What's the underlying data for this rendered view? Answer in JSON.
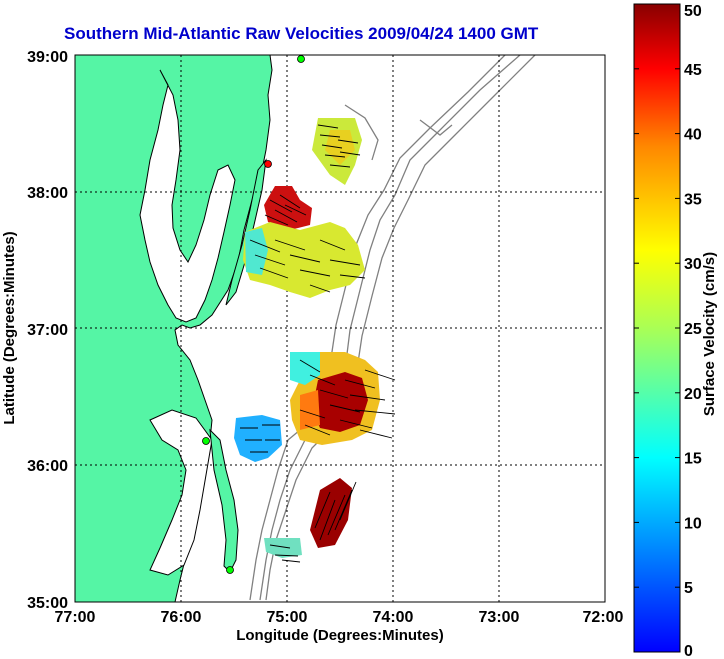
{
  "title": "Southern Mid-Atlantic Raw Velocities 2009/04/24 1400 GMT",
  "xlabel": "Longitude (Degrees:Minutes)",
  "ylabel": "Latitude (Degrees:Minutes)",
  "colorbar": {
    "label": "Surface Velocity (cm/s)",
    "min": 0,
    "max": 50,
    "ticks": [
      0,
      5,
      10,
      15,
      20,
      25,
      30,
      35,
      40,
      45,
      50
    ],
    "tick_labels": [
      "0",
      "5",
      "10",
      "15",
      "20",
      "25",
      "30",
      "35",
      "40",
      "45",
      "50"
    ]
  },
  "chart_data": {
    "type": "heatmap",
    "title": "Southern Mid-Atlantic Raw Velocities 2009/04/24 1400 GMT",
    "xlabel": "Longitude (Degrees:Minutes)",
    "ylabel": "Latitude (Degrees:Minutes)",
    "xlim": [
      -77,
      -72
    ],
    "ylim": [
      35,
      39
    ],
    "x_ticks": [
      -77,
      -76,
      -75,
      -74,
      -73,
      -72
    ],
    "x_tick_labels": [
      "77:00",
      "76:00",
      "75:00",
      "74:00",
      "73:00",
      "72:00"
    ],
    "y_ticks": [
      35,
      36,
      37,
      38,
      39
    ],
    "y_tick_labels": [
      "35:00",
      "36:00",
      "37:00",
      "38:00",
      "39:00"
    ],
    "grid": true,
    "colormap": "jet",
    "land_color": "#55f5a5",
    "velocity_regions": [
      {
        "lon": [
          -74.75,
          -74.25
        ],
        "lat": [
          37.85,
          38.5
        ],
        "speed": 23
      },
      {
        "lon": [
          -75.05,
          -74.8
        ],
        "lat": [
          37.75,
          38.02
        ],
        "speed": 42
      },
      {
        "lon": [
          -75.4,
          -74.5
        ],
        "lat": [
          37.25,
          37.8
        ],
        "speed": 22
      },
      {
        "lon": [
          -75.1,
          -74.15
        ],
        "lat": [
          36.1,
          36.85
        ],
        "speed": 25
      },
      {
        "lon": [
          -75.5,
          -75.15
        ],
        "lat": [
          36.0,
          36.4
        ],
        "speed": 9
      },
      {
        "lon": [
          -74.75,
          -74.35
        ],
        "lat": [
          35.4,
          35.9
        ],
        "speed": 47
      },
      {
        "lon": [
          -75.2,
          -74.8
        ],
        "lat": [
          35.3,
          35.5
        ],
        "speed": 16
      }
    ],
    "sites": [
      {
        "lon": -75.1,
        "lat": 38.97,
        "color": "green"
      },
      {
        "lon": -75.18,
        "lat": 38.2,
        "color": "red"
      },
      {
        "lon": -75.72,
        "lat": 36.18,
        "color": "green"
      },
      {
        "lon": -75.5,
        "lat": 35.25,
        "color": "green"
      }
    ]
  }
}
